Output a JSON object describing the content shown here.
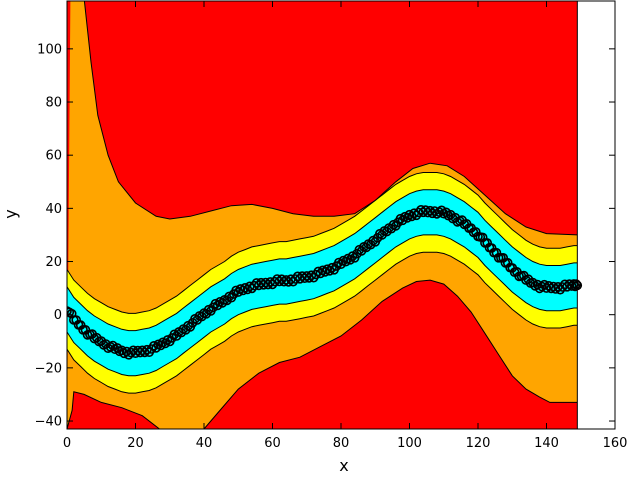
{
  "chart_data": {
    "type": "filled-contour-scatter",
    "title": "",
    "xlabel": "x",
    "ylabel": "y",
    "xlim": [
      0,
      160
    ],
    "ylim": [
      -43,
      118
    ],
    "x_ticks": [
      0,
      20,
      40,
      60,
      80,
      100,
      120,
      140,
      160
    ],
    "y_ticks": [
      -40,
      -20,
      0,
      20,
      40,
      60,
      80,
      100
    ],
    "y_tick_labels": [
      "−40",
      "−20",
      "0",
      "20",
      "40",
      "60",
      "80",
      "100"
    ],
    "grid": false,
    "legend": "none",
    "contour_x_extent": [
      0,
      149
    ],
    "band_colors": {
      "outer": "#ff0000",
      "orange": "#ffa500",
      "yellow": "#ffff00",
      "center": "#00ffff",
      "points": "#000000",
      "contour_line": "#000000"
    },
    "band_offsets": {
      "cyan": [
        -4,
        4
      ],
      "yellow_inner_upper": 8.5,
      "yellow_inner_lower": -8.5,
      "orange_inner_upper": 15,
      "orange_inner_lower": -15
    },
    "orange_red_boundary_upper": [
      [
        1,
        119
      ],
      [
        5,
        119
      ],
      [
        7,
        95
      ],
      [
        9,
        75
      ],
      [
        12,
        60
      ],
      [
        15,
        50
      ],
      [
        20,
        42
      ],
      [
        26,
        37
      ],
      [
        30,
        36
      ],
      [
        36,
        37
      ],
      [
        42,
        39
      ],
      [
        48,
        41
      ],
      [
        54,
        41.5
      ],
      [
        60,
        40
      ],
      [
        66,
        38
      ],
      [
        72,
        37
      ],
      [
        78,
        37
      ],
      [
        84,
        38
      ],
      [
        90,
        43
      ],
      [
        96,
        50
      ],
      [
        101,
        55
      ],
      [
        106,
        57
      ],
      [
        111,
        56
      ],
      [
        116,
        52
      ],
      [
        122,
        45
      ],
      [
        128,
        38
      ],
      [
        134,
        33
      ],
      [
        140,
        30.5
      ],
      [
        149,
        30
      ]
    ],
    "orange_red_boundary_lower": [
      [
        0,
        -43
      ],
      [
        1.5,
        -36
      ],
      [
        2,
        -29
      ],
      [
        5,
        -30
      ],
      [
        10,
        -33
      ],
      [
        16,
        -35
      ],
      [
        22,
        -38
      ],
      [
        27,
        -43
      ],
      [
        40,
        -43
      ],
      [
        44,
        -37
      ],
      [
        50,
        -28
      ],
      [
        56,
        -22
      ],
      [
        62,
        -18
      ],
      [
        68,
        -16
      ],
      [
        74,
        -12
      ],
      [
        80,
        -8
      ],
      [
        86,
        -2
      ],
      [
        92,
        5
      ],
      [
        98,
        10
      ],
      [
        102,
        12.5
      ],
      [
        106,
        13
      ],
      [
        110,
        11.5
      ],
      [
        114,
        7
      ],
      [
        118,
        1
      ],
      [
        122,
        -7
      ],
      [
        126,
        -15
      ],
      [
        130,
        -23
      ],
      [
        134,
        -28
      ],
      [
        138,
        -31
      ],
      [
        141,
        -33
      ],
      [
        145,
        -33
      ],
      [
        149,
        -33
      ]
    ],
    "series_points": [
      [
        0,
        2
      ],
      [
        2,
        -2
      ],
      [
        4,
        -4.5
      ],
      [
        6,
        -7
      ],
      [
        8,
        -9
      ],
      [
        10,
        -10.5
      ],
      [
        12,
        -12
      ],
      [
        14,
        -13
      ],
      [
        16,
        -14
      ],
      [
        18,
        -14.5
      ],
      [
        20,
        -14.5
      ],
      [
        22,
        -14
      ],
      [
        24,
        -13.5
      ],
      [
        26,
        -12.5
      ],
      [
        28,
        -11
      ],
      [
        30,
        -9.5
      ],
      [
        32,
        -8
      ],
      [
        34,
        -6
      ],
      [
        36,
        -4
      ],
      [
        38,
        -2
      ],
      [
        40,
        0
      ],
      [
        42,
        2
      ],
      [
        44,
        3.5
      ],
      [
        46,
        5
      ],
      [
        48,
        7
      ],
      [
        50,
        8.5
      ],
      [
        52,
        9.5
      ],
      [
        54,
        10.5
      ],
      [
        56,
        11
      ],
      [
        58,
        11.5
      ],
      [
        60,
        12
      ],
      [
        62,
        12.5
      ],
      [
        64,
        12.5
      ],
      [
        66,
        13
      ],
      [
        68,
        13.5
      ],
      [
        70,
        14
      ],
      [
        72,
        14.5
      ],
      [
        74,
        15.5
      ],
      [
        76,
        16.5
      ],
      [
        78,
        17.5
      ],
      [
        80,
        19
      ],
      [
        82,
        20.5
      ],
      [
        84,
        22
      ],
      [
        86,
        24
      ],
      [
        88,
        26
      ],
      [
        90,
        28
      ],
      [
        92,
        30
      ],
      [
        94,
        32
      ],
      [
        96,
        34
      ],
      [
        98,
        35.5
      ],
      [
        100,
        37
      ],
      [
        102,
        38
      ],
      [
        104,
        38.5
      ],
      [
        106,
        38.5
      ],
      [
        108,
        38.5
      ],
      [
        110,
        38
      ],
      [
        112,
        37
      ],
      [
        114,
        35.5
      ],
      [
        116,
        34
      ],
      [
        118,
        32
      ],
      [
        120,
        30
      ],
      [
        122,
        27
      ],
      [
        124,
        24.5
      ],
      [
        126,
        22
      ],
      [
        128,
        19.5
      ],
      [
        130,
        17
      ],
      [
        132,
        15
      ],
      [
        134,
        13
      ],
      [
        136,
        11.5
      ],
      [
        138,
        10.5
      ],
      [
        140,
        10
      ],
      [
        142,
        10
      ],
      [
        144,
        10
      ],
      [
        146,
        10.5
      ],
      [
        148,
        11
      ],
      [
        149,
        11
      ]
    ]
  }
}
